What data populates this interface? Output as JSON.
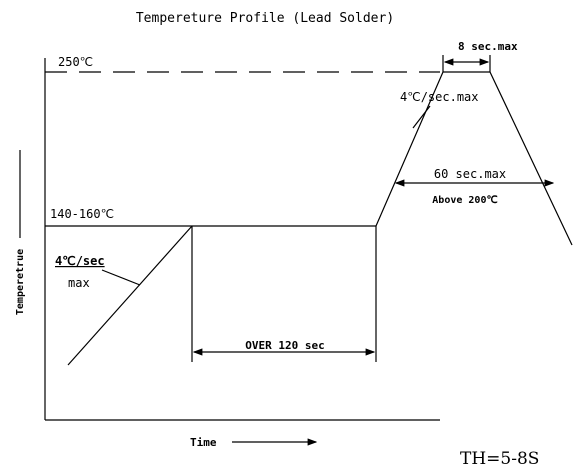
{
  "title": "Tempereture Profile (Lead Solder)",
  "labels": {
    "peak_temp": "250℃",
    "peak_time": "8 sec.max",
    "ramp_up": "4℃/sec.max",
    "above_time": "60 sec.max",
    "above_temp": "Above 200℃",
    "preheat_temp": "140-160℃",
    "preheat_ramp": "4℃/sec",
    "preheat_ramp_max": "max",
    "preheat_time": "OVER 120 sec",
    "y_axis": "Temperetrue",
    "x_axis": "Time",
    "note": "TH=5-8S"
  }
}
